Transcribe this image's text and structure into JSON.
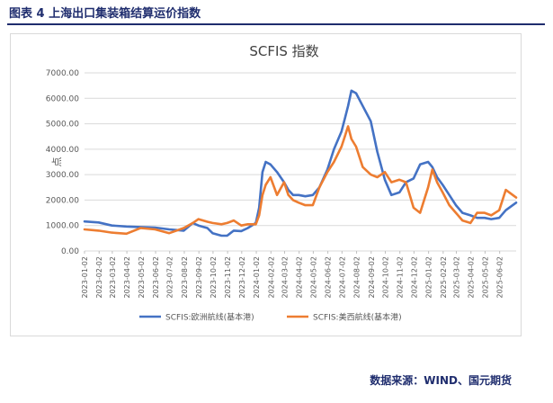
{
  "figure_title": "图表 4  上海出口集装箱结算运价指数",
  "source": "数据来源：WIND、国元期货",
  "colors": {
    "europe": "#4472c4",
    "us_west": "#ed7d31",
    "grid": "#d9d9d9",
    "axis_text": "#595959",
    "title_text": "#404040"
  },
  "chart_data": {
    "type": "line",
    "title": "SCFIS 指数",
    "ylabel": "点",
    "xlabel": "",
    "ylim": [
      0,
      7000
    ],
    "yticks": [
      "0.00",
      "1000.00",
      "2000.00",
      "3000.00",
      "4000.00",
      "5000.00",
      "6000.00",
      "7000.00"
    ],
    "xticks": [
      "2023-01-02",
      "2023-02-02",
      "2023-03-02",
      "2023-04-02",
      "2023-05-02",
      "2023-06-02",
      "2023-07-02",
      "2023-08-02",
      "2023-09-02",
      "2023-10-02",
      "2023-11-02",
      "2023-12-02",
      "2024-01-02",
      "2024-02-02",
      "2024-03-02",
      "2024-04-02",
      "2024-05-02",
      "2024-06-02",
      "2024-07-02",
      "2024-08-02",
      "2024-09-02",
      "2024-10-02",
      "2024-11-02",
      "2024-12-02",
      "2025-01-02",
      "2025-02-02",
      "2025-03-02",
      "2025-04-02",
      "2025-05-02",
      "2025-06-02"
    ],
    "x_start": "2023-01-02",
    "x_end": "2025-07-07",
    "grid": true,
    "legend_position": "bottom",
    "series": [
      {
        "name": "SCFIS:欧洲航线(基本港)",
        "color": "#4472c4",
        "x": [
          "2023-01-02",
          "2023-02-01",
          "2023-03-01",
          "2023-04-01",
          "2023-05-01",
          "2023-06-01",
          "2023-07-01",
          "2023-08-01",
          "2023-08-20",
          "2023-09-01",
          "2023-09-20",
          "2023-10-01",
          "2023-10-20",
          "2023-11-01",
          "2023-11-15",
          "2023-12-01",
          "2023-12-15",
          "2024-01-01",
          "2024-01-08",
          "2024-01-15",
          "2024-01-22",
          "2024-02-01",
          "2024-02-15",
          "2024-03-01",
          "2024-03-10",
          "2024-03-20",
          "2024-04-01",
          "2024-04-15",
          "2024-05-01",
          "2024-05-15",
          "2024-06-01",
          "2024-06-15",
          "2024-07-01",
          "2024-07-08",
          "2024-07-15",
          "2024-07-22",
          "2024-08-01",
          "2024-08-15",
          "2024-09-01",
          "2024-09-15",
          "2024-10-01",
          "2024-10-15",
          "2024-11-01",
          "2024-11-15",
          "2024-12-01",
          "2024-12-15",
          "2025-01-01",
          "2025-01-10",
          "2025-01-20",
          "2025-02-01",
          "2025-02-15",
          "2025-03-01",
          "2025-03-15",
          "2025-04-01",
          "2025-04-15",
          "2025-05-01",
          "2025-05-15",
          "2025-06-01",
          "2025-06-15",
          "2025-07-07"
        ],
        "values": [
          1160,
          1120,
          1000,
          960,
          940,
          920,
          850,
          800,
          1100,
          1000,
          900,
          700,
          600,
          600,
          800,
          780,
          900,
          1100,
          1700,
          3100,
          3500,
          3400,
          3100,
          2700,
          2400,
          2200,
          2200,
          2150,
          2200,
          2500,
          3200,
          4000,
          4700,
          5200,
          5700,
          6300,
          6200,
          5700,
          5100,
          3900,
          2800,
          2200,
          2300,
          2700,
          2850,
          3400,
          3500,
          3300,
          2900,
          2600,
          2200,
          1800,
          1500,
          1400,
          1300,
          1300,
          1250,
          1300,
          1600,
          1900
        ]
      },
      {
        "name": "SCFIS:美西航线(基本港)",
        "color": "#ed7d31",
        "x": [
          "2023-01-02",
          "2023-02-01",
          "2023-03-01",
          "2023-04-01",
          "2023-05-01",
          "2023-06-01",
          "2023-07-01",
          "2023-08-01",
          "2023-08-20",
          "2023-09-01",
          "2023-09-20",
          "2023-10-01",
          "2023-10-20",
          "2023-11-01",
          "2023-11-15",
          "2023-12-01",
          "2023-12-15",
          "2024-01-01",
          "2024-01-08",
          "2024-01-15",
          "2024-01-22",
          "2024-02-01",
          "2024-02-15",
          "2024-03-01",
          "2024-03-10",
          "2024-03-20",
          "2024-04-01",
          "2024-04-15",
          "2024-05-01",
          "2024-05-15",
          "2024-06-01",
          "2024-06-15",
          "2024-07-01",
          "2024-07-08",
          "2024-07-15",
          "2024-07-22",
          "2024-08-01",
          "2024-08-15",
          "2024-09-01",
          "2024-09-15",
          "2024-10-01",
          "2024-10-15",
          "2024-11-01",
          "2024-11-15",
          "2024-12-01",
          "2024-12-15",
          "2025-01-01",
          "2025-01-10",
          "2025-01-20",
          "2025-02-01",
          "2025-02-15",
          "2025-03-01",
          "2025-03-15",
          "2025-04-01",
          "2025-04-15",
          "2025-05-01",
          "2025-05-15",
          "2025-06-01",
          "2025-06-15",
          "2025-07-07"
        ],
        "values": [
          850,
          800,
          720,
          680,
          900,
          850,
          700,
          900,
          1100,
          1250,
          1150,
          1100,
          1050,
          1100,
          1200,
          1000,
          1050,
          1050,
          1400,
          2200,
          2600,
          2900,
          2200,
          2700,
          2200,
          2000,
          1900,
          1800,
          1800,
          2500,
          3100,
          3500,
          4100,
          4500,
          4900,
          4400,
          4100,
          3300,
          3000,
          2900,
          3100,
          2700,
          2800,
          2700,
          1700,
          1500,
          2500,
          3200,
          2700,
          2300,
          1800,
          1500,
          1200,
          1100,
          1500,
          1500,
          1400,
          1600,
          2400,
          2100
        ]
      }
    ]
  }
}
